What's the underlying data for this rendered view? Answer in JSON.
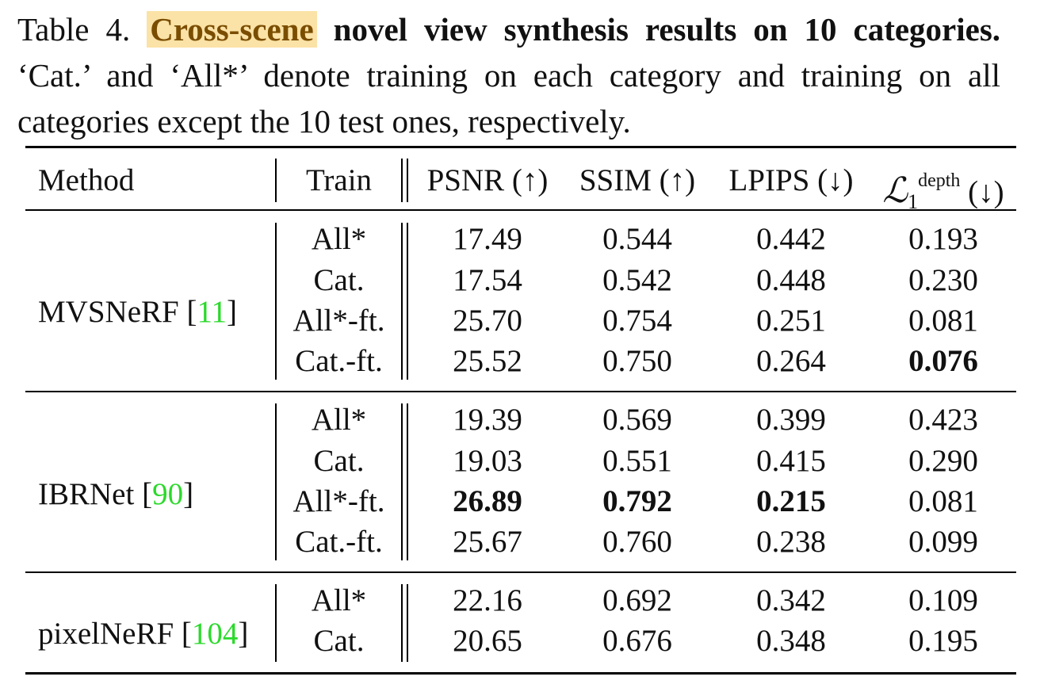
{
  "caption": {
    "label": "Table 4.",
    "highlight": "Cross-scene",
    "bold_title": "novel view synthesis results on 10 categories.",
    "body": "‘Cat.’ and ‘All*’ denote training on each category and training on all categories except the 10 test ones, respectively."
  },
  "table": {
    "headers": {
      "method": "Method",
      "train": "Train",
      "psnr": "PSNR (↑)",
      "ssim": "SSIM (↑)",
      "lpips": "LPIPS (↓)",
      "depth_symbol": "ℒ",
      "depth_sub": "1",
      "depth_sup": "depth",
      "depth_arrow": "(↓)"
    },
    "groups": [
      {
        "method": "MVSNeRF [",
        "cite": "11",
        "close": "]",
        "rows": [
          {
            "train": "All*",
            "psnr": "17.49",
            "ssim": "0.544",
            "lpips": "0.442",
            "depth": "0.193"
          },
          {
            "train": "Cat.",
            "psnr": "17.54",
            "ssim": "0.542",
            "lpips": "0.448",
            "depth": "0.230"
          },
          {
            "train": "All*-ft.",
            "psnr": "25.70",
            "ssim": "0.754",
            "lpips": "0.251",
            "depth": "0.081"
          },
          {
            "train": "Cat.-ft.",
            "psnr": "25.52",
            "ssim": "0.750",
            "lpips": "0.264",
            "depth": "0.076"
          }
        ]
      },
      {
        "method": "IBRNet [",
        "cite": "90",
        "close": "]",
        "rows": [
          {
            "train": "All*",
            "psnr": "19.39",
            "ssim": "0.569",
            "lpips": "0.399",
            "depth": "0.423"
          },
          {
            "train": "Cat.",
            "psnr": "19.03",
            "ssim": "0.551",
            "lpips": "0.415",
            "depth": "0.290"
          },
          {
            "train": "All*-ft.",
            "psnr": "26.89",
            "ssim": "0.792",
            "lpips": "0.215",
            "depth": "0.081"
          },
          {
            "train": "Cat.-ft.",
            "psnr": "25.67",
            "ssim": "0.760",
            "lpips": "0.238",
            "depth": "0.099"
          }
        ]
      },
      {
        "method": "pixelNeRF [",
        "cite": "104",
        "close": "]",
        "rows": [
          {
            "train": "All*",
            "psnr": "22.16",
            "ssim": "0.692",
            "lpips": "0.342",
            "depth": "0.109"
          },
          {
            "train": "Cat.",
            "psnr": "20.65",
            "ssim": "0.676",
            "lpips": "0.348",
            "depth": "0.195"
          }
        ]
      }
    ]
  }
}
